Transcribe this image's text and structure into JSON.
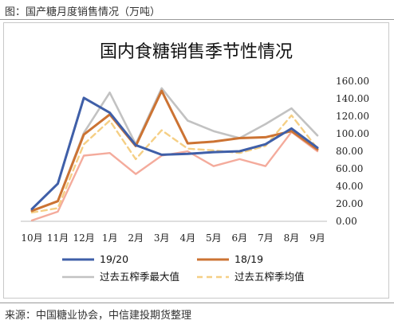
{
  "caption": "图：国产糖月度销售情况（万吨）",
  "source": "来源：中国糖业协会，中信建投期货整理",
  "chart_data": {
    "type": "line",
    "title": "国内食糖销售季节性情况",
    "xlabel": "",
    "ylabel": "",
    "categories": [
      "10月",
      "11月",
      "12月",
      "1月",
      "2月",
      "3月",
      "4月",
      "5月",
      "6月",
      "7月",
      "8月",
      "9月"
    ],
    "ylim": [
      0,
      160
    ],
    "yticks": [
      "0.00",
      "20.00",
      "40.00",
      "60.00",
      "80.00",
      "100.00",
      "120.00",
      "140.00",
      "160.00"
    ],
    "y_axis_position": "right",
    "grid": false,
    "legend_position": "bottom",
    "series": [
      {
        "name": "19/20",
        "color": "#3f5fa8",
        "dash": "none",
        "width": 3,
        "values": [
          14,
          43,
          141,
          124,
          87,
          76,
          77,
          79,
          80,
          88,
          106,
          84
        ]
      },
      {
        "name": "18/19",
        "color": "#cc7333",
        "dash": "none",
        "width": 3,
        "values": [
          12,
          23,
          99,
          122,
          86,
          149,
          89,
          91,
          95,
          96,
          103,
          82
        ]
      },
      {
        "name": "过去五榨季最大值",
        "color": "#c2c2c2",
        "dash": "none",
        "width": 2.6,
        "values": [
          12,
          23,
          101,
          147,
          88,
          152,
          115,
          103,
          95,
          111,
          129,
          98
        ]
      },
      {
        "name": "过去五榨季均值",
        "color": "#f5cf85",
        "dash": "7,5",
        "width": 2.4,
        "values": [
          10,
          15,
          88,
          115,
          71,
          104,
          83,
          81,
          78,
          86,
          121,
          83
        ]
      },
      {
        "name": "",
        "color": "#f4ab9c",
        "dash": "none",
        "width": 2.4,
        "values": [
          1,
          11,
          75,
          78,
          54,
          75,
          80,
          63,
          71,
          63,
          102,
          80
        ]
      }
    ]
  }
}
